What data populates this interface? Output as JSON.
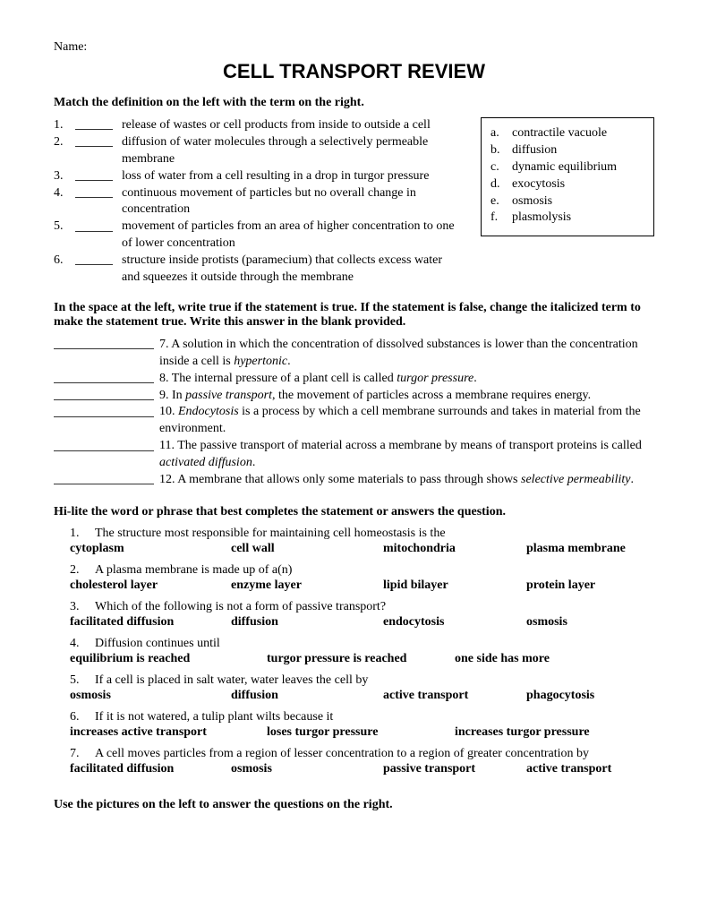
{
  "nameLabel": "Name:",
  "title": "CELL TRANSPORT REVIEW",
  "section1": {
    "heading": "Match the definition on the left with the term on the right.",
    "items": [
      "release of wastes or cell products from inside to outside a cell",
      "diffusion of water molecules through a selectively permeable membrane",
      "loss of water from a cell resulting in a drop in turgor pressure",
      "continuous movement of particles but no overall change in concentration",
      "movement of particles from an area of higher concentration to one of lower concentration",
      "structure inside protists (paramecium) that collects excess water and squeezes it outside through the membrane"
    ],
    "terms": [
      "contractile vacuole",
      "diffusion",
      "dynamic equilibrium",
      "exocytosis",
      "osmosis",
      "plasmolysis"
    ]
  },
  "section2": {
    "heading": "In the space at the left, write true if the statement is true.  If the statement is false, change the italicized term to make the statement true. Write this answer in the blank provided.",
    "items": [
      {
        "n": "7",
        "pre": "A solution in which the concentration of dissolved substances is lower than the concentration inside a cell is ",
        "it": "hypertonic",
        "post": "."
      },
      {
        "n": "8",
        "pre": "The internal pressure of a plant cell is called ",
        "it": "turgor pressure",
        "post": "."
      },
      {
        "n": "9",
        "pre": "In ",
        "it": "passive transport",
        "post": ", the movement of particles across a membrane requires energy."
      },
      {
        "n": "10",
        "pre": "",
        "it": "Endocytosis",
        "post": " is a process by which a cell membrane surrounds and takes in material from the environment."
      },
      {
        "n": "11",
        "pre": "The passive transport of material across a membrane by means of transport proteins is called ",
        "it": "activated diffusion",
        "post": "."
      },
      {
        "n": "12",
        "pre": "A membrane that allows only some materials to pass through shows ",
        "it": "selective permeability",
        "post": "."
      }
    ]
  },
  "section3": {
    "heading": "Hi-lite the word or phrase that best completes the statement or answers the question.",
    "questions": [
      {
        "n": "1",
        "q": "The structure most responsible for maintaining cell homeostasis is the",
        "opts": [
          "cytoplasm",
          "cell wall",
          "mitochondria",
          "plasma membrane"
        ]
      },
      {
        "n": "2",
        "q": "A plasma membrane is made up of a(n)",
        "opts": [
          "cholesterol layer",
          "enzyme layer",
          "lipid bilayer",
          "protein layer"
        ]
      },
      {
        "n": "3",
        "q": "Which of the following is not a form of passive transport?",
        "opts": [
          "facilitated diffusion",
          "diffusion",
          "endocytosis",
          "osmosis"
        ]
      },
      {
        "n": "4",
        "q": "Diffusion continues until",
        "opts": [
          "equilibrium is reached",
          "turgor pressure is reached",
          "one side has more"
        ]
      },
      {
        "n": "5",
        "q": "If a cell is placed in salt water, water leaves the cell by",
        "opts": [
          "osmosis",
          "diffusion",
          "active transport",
          "phagocytosis"
        ]
      },
      {
        "n": "6",
        "q": "If it is not watered, a tulip plant wilts because it",
        "opts": [
          "increases active transport",
          "loses turgor pressure",
          "increases turgor pressure"
        ]
      },
      {
        "n": "7",
        "q": "A cell moves particles from a region of lesser concentration to a region of greater concentration by",
        "opts": [
          "facilitated diffusion",
          "osmosis",
          "passive transport",
          "active transport"
        ]
      }
    ]
  },
  "section4": {
    "heading": "Use the pictures on the left to answer the questions on the right."
  }
}
